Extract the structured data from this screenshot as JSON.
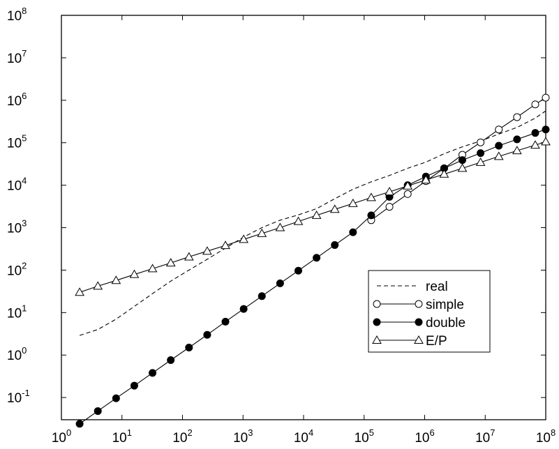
{
  "chart_data": {
    "type": "line",
    "title": "",
    "xlabel": "",
    "ylabel": "",
    "x_scale": "log",
    "y_scale": "log",
    "xlim": [
      1,
      100000000
    ],
    "ylim": [
      0.03,
      100000000
    ],
    "x_ticks": [
      {
        "base": "10",
        "exp": "0"
      },
      {
        "base": "10",
        "exp": "1"
      },
      {
        "base": "10",
        "exp": "2"
      },
      {
        "base": "10",
        "exp": "3"
      },
      {
        "base": "10",
        "exp": "4"
      },
      {
        "base": "10",
        "exp": "5"
      },
      {
        "base": "10",
        "exp": "6"
      },
      {
        "base": "10",
        "exp": "7"
      },
      {
        "base": "10",
        "exp": "8"
      }
    ],
    "y_ticks": [
      {
        "base": "10",
        "exp": "-1"
      },
      {
        "base": "10",
        "exp": "0"
      },
      {
        "base": "10",
        "exp": "1"
      },
      {
        "base": "10",
        "exp": "2"
      },
      {
        "base": "10",
        "exp": "3"
      },
      {
        "base": "10",
        "exp": "4"
      },
      {
        "base": "10",
        "exp": "5"
      },
      {
        "base": "10",
        "exp": "6"
      },
      {
        "base": "10",
        "exp": "7"
      },
      {
        "base": "10",
        "exp": "8"
      }
    ],
    "grid": false,
    "legend_position": "bottom-right",
    "series": [
      {
        "name": "real",
        "style": "dashed",
        "marker": "none",
        "points": [
          [
            2,
            2.9
          ],
          [
            4,
            4
          ],
          [
            8,
            7
          ],
          [
            16,
            14
          ],
          [
            32,
            28
          ],
          [
            64,
            55
          ],
          [
            128,
            100
          ],
          [
            256,
            180
          ],
          [
            512,
            330
          ],
          [
            1024,
            600
          ],
          [
            2048,
            1000
          ],
          [
            4096,
            1500
          ],
          [
            8192,
            2000
          ],
          [
            16384,
            2800
          ],
          [
            32768,
            4800
          ],
          [
            65536,
            8000
          ],
          [
            131072,
            12000
          ],
          [
            262144,
            17000
          ],
          [
            524288,
            25000
          ],
          [
            1048576,
            35000
          ],
          [
            2097152,
            55000
          ],
          [
            4194304,
            80000
          ],
          [
            8388608,
            110000
          ],
          [
            16777216,
            160000
          ],
          [
            33554432,
            230000
          ],
          [
            67108864,
            380000
          ],
          [
            100000000,
            560000
          ]
        ]
      },
      {
        "name": "simple",
        "style": "solid",
        "marker": "open-circle",
        "points": [
          [
            131072,
            1500
          ],
          [
            262144,
            3100
          ],
          [
            524288,
            6200
          ],
          [
            1048576,
            12500
          ],
          [
            2097152,
            25000
          ],
          [
            4194304,
            52000
          ],
          [
            8388608,
            102000
          ],
          [
            16777216,
            205000
          ],
          [
            33554432,
            400000
          ],
          [
            67108864,
            800000
          ],
          [
            100000000,
            1150000
          ]
        ]
      },
      {
        "name": "double",
        "style": "solid",
        "marker": "filled-circle",
        "points": [
          [
            2,
            0.024
          ],
          [
            4,
            0.048
          ],
          [
            8,
            0.096
          ],
          [
            16,
            0.19
          ],
          [
            32,
            0.38
          ],
          [
            64,
            0.76
          ],
          [
            128,
            1.5
          ],
          [
            256,
            3.0
          ],
          [
            512,
            6.1
          ],
          [
            1024,
            12.2
          ],
          [
            2048,
            24.4
          ],
          [
            4096,
            48.8
          ],
          [
            8192,
            97
          ],
          [
            16384,
            195
          ],
          [
            32768,
            390
          ],
          [
            65536,
            780
          ],
          [
            131072,
            1950
          ],
          [
            262144,
            5300
          ],
          [
            524288,
            10000
          ],
          [
            1048576,
            16000
          ],
          [
            2097152,
            25000
          ],
          [
            4194304,
            39000
          ],
          [
            8388608,
            57000
          ],
          [
            16777216,
            85000
          ],
          [
            33554432,
            120000
          ],
          [
            67108864,
            170000
          ],
          [
            100000000,
            205000
          ]
        ]
      },
      {
        "name": "E/P",
        "style": "solid",
        "marker": "open-triangle",
        "points": [
          [
            2,
            30
          ],
          [
            4,
            42
          ],
          [
            8,
            57
          ],
          [
            16,
            79
          ],
          [
            32,
            108
          ],
          [
            64,
            148
          ],
          [
            128,
            205
          ],
          [
            256,
            280
          ],
          [
            512,
            380
          ],
          [
            1024,
            530
          ],
          [
            2048,
            730
          ],
          [
            4096,
            1000
          ],
          [
            8192,
            1400
          ],
          [
            16384,
            1950
          ],
          [
            32768,
            2700
          ],
          [
            65536,
            3700
          ],
          [
            131072,
            5100
          ],
          [
            262144,
            7000
          ],
          [
            524288,
            9600
          ],
          [
            1048576,
            13300
          ],
          [
            2097152,
            18200
          ],
          [
            4194304,
            25000
          ],
          [
            8388608,
            34500
          ],
          [
            16777216,
            47500
          ],
          [
            33554432,
            65000
          ],
          [
            67108864,
            88000
          ],
          [
            100000000,
            105000
          ]
        ]
      }
    ]
  }
}
